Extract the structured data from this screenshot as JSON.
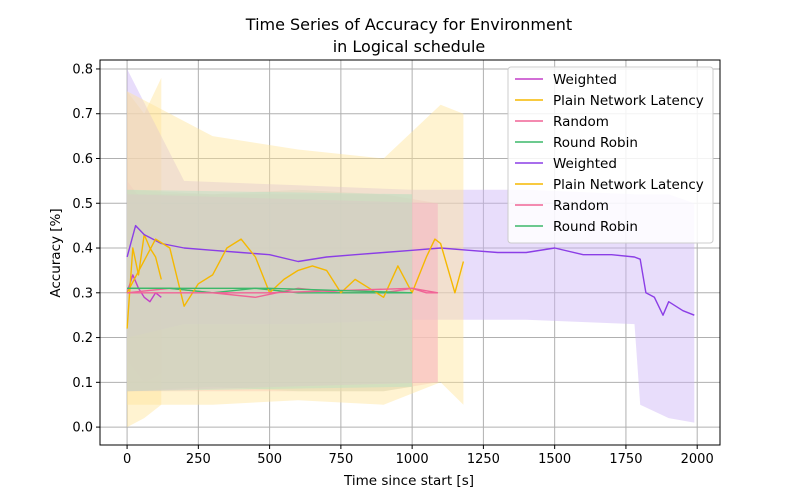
{
  "chart_data": {
    "type": "line",
    "title_line1": "Time Series of Accuracy for Environment",
    "title_line2": "in Logical schedule",
    "xlabel": "Time since start [s]",
    "ylabel": "Accuracy [%]",
    "xlim": [
      -95,
      2080
    ],
    "ylim": [
      -0.04,
      0.82
    ],
    "xticks": [
      0,
      250,
      500,
      750,
      1000,
      1250,
      1500,
      1750,
      2000
    ],
    "yticks": [
      0.0,
      0.1,
      0.2,
      0.3,
      0.4,
      0.5,
      0.6,
      0.7,
      0.8
    ],
    "grid": true,
    "legend_position": "top-right",
    "series": [
      {
        "name": "Weighted",
        "color": "#c33fc8",
        "values": [
          [
            0,
            0.3
          ],
          [
            20,
            0.34
          ],
          [
            40,
            0.31
          ],
          [
            60,
            0.29
          ],
          [
            80,
            0.28
          ],
          [
            100,
            0.3
          ],
          [
            120,
            0.29
          ]
        ],
        "band_low": [
          [
            0,
            0.15
          ],
          [
            60,
            0.1
          ],
          [
            120,
            0.12
          ]
        ],
        "band_high": [
          [
            0,
            0.55
          ],
          [
            60,
            0.5
          ],
          [
            120,
            0.52
          ]
        ],
        "band_color": "#e6a8f0"
      },
      {
        "name": "Plain Network Latency",
        "color": "#f5b800",
        "values": [
          [
            0,
            0.22
          ],
          [
            20,
            0.4
          ],
          [
            40,
            0.34
          ],
          [
            60,
            0.43
          ],
          [
            80,
            0.4
          ],
          [
            100,
            0.38
          ],
          [
            120,
            0.33
          ]
        ],
        "band_low": [
          [
            0,
            0.0
          ],
          [
            60,
            0.02
          ],
          [
            120,
            0.05
          ]
        ],
        "band_high": [
          [
            0,
            0.75
          ],
          [
            60,
            0.7
          ],
          [
            120,
            0.78
          ]
        ],
        "band_color": "#ffe59a"
      },
      {
        "name": "Random",
        "color": "#f06496",
        "values": [
          [
            0,
            0.3
          ],
          [
            150,
            0.31
          ],
          [
            300,
            0.3
          ],
          [
            450,
            0.29
          ],
          [
            600,
            0.31
          ],
          [
            750,
            0.3
          ],
          [
            900,
            0.3
          ],
          [
            1000,
            0.31
          ],
          [
            1050,
            0.3
          ],
          [
            1090,
            0.3
          ]
        ],
        "band_low": [
          [
            0,
            0.08
          ],
          [
            300,
            0.08
          ],
          [
            600,
            0.08
          ],
          [
            900,
            0.08
          ],
          [
            1090,
            0.1
          ]
        ],
        "band_high": [
          [
            0,
            0.52
          ],
          [
            300,
            0.52
          ],
          [
            600,
            0.52
          ],
          [
            900,
            0.52
          ],
          [
            1090,
            0.5
          ]
        ],
        "band_color": "#f7b6c8"
      },
      {
        "name": "Round Robin",
        "color": "#3cb86a",
        "values": [
          [
            0,
            0.31
          ],
          [
            150,
            0.31
          ],
          [
            300,
            0.3
          ],
          [
            450,
            0.31
          ],
          [
            600,
            0.3
          ],
          [
            750,
            0.3
          ],
          [
            900,
            0.3
          ],
          [
            1000,
            0.3
          ]
        ],
        "band_low": [
          [
            0,
            0.08
          ],
          [
            300,
            0.09
          ],
          [
            600,
            0.08
          ],
          [
            900,
            0.08
          ],
          [
            1000,
            0.09
          ]
        ],
        "band_high": [
          [
            0,
            0.53
          ],
          [
            300,
            0.52
          ],
          [
            600,
            0.53
          ],
          [
            900,
            0.52
          ],
          [
            1000,
            0.52
          ]
        ],
        "band_color": "#b6e0c4"
      },
      {
        "name": "Weighted",
        "color": "#8b3ee6",
        "values": [
          [
            0,
            0.38
          ],
          [
            30,
            0.45
          ],
          [
            60,
            0.43
          ],
          [
            120,
            0.41
          ],
          [
            200,
            0.4
          ],
          [
            300,
            0.395
          ],
          [
            400,
            0.39
          ],
          [
            500,
            0.385
          ],
          [
            600,
            0.37
          ],
          [
            700,
            0.38
          ],
          [
            800,
            0.385
          ],
          [
            900,
            0.39
          ],
          [
            1000,
            0.395
          ],
          [
            1100,
            0.4
          ],
          [
            1200,
            0.395
          ],
          [
            1300,
            0.39
          ],
          [
            1400,
            0.39
          ],
          [
            1500,
            0.4
          ],
          [
            1600,
            0.385
          ],
          [
            1700,
            0.385
          ],
          [
            1780,
            0.38
          ],
          [
            1800,
            0.375
          ],
          [
            1820,
            0.3
          ],
          [
            1850,
            0.29
          ],
          [
            1880,
            0.25
          ],
          [
            1900,
            0.28
          ],
          [
            1950,
            0.26
          ],
          [
            1990,
            0.25
          ]
        ],
        "band_low": [
          [
            0,
            0.2
          ],
          [
            200,
            0.23
          ],
          [
            600,
            0.23
          ],
          [
            1000,
            0.24
          ],
          [
            1400,
            0.24
          ],
          [
            1780,
            0.23
          ],
          [
            1800,
            0.05
          ],
          [
            1900,
            0.02
          ],
          [
            1990,
            0.01
          ]
        ],
        "band_high": [
          [
            0,
            0.8
          ],
          [
            200,
            0.55
          ],
          [
            600,
            0.54
          ],
          [
            1000,
            0.53
          ],
          [
            1400,
            0.53
          ],
          [
            1780,
            0.52
          ],
          [
            1800,
            0.52
          ],
          [
            1900,
            0.52
          ],
          [
            1990,
            0.5
          ]
        ],
        "band_color": "#cbb3f7"
      },
      {
        "name": "Plain Network Latency",
        "color": "#f5b800",
        "values": [
          [
            0,
            0.3
          ],
          [
            100,
            0.42
          ],
          [
            150,
            0.4
          ],
          [
            200,
            0.27
          ],
          [
            250,
            0.32
          ],
          [
            300,
            0.34
          ],
          [
            350,
            0.4
          ],
          [
            400,
            0.42
          ],
          [
            450,
            0.38
          ],
          [
            500,
            0.3
          ],
          [
            550,
            0.33
          ],
          [
            600,
            0.35
          ],
          [
            650,
            0.36
          ],
          [
            700,
            0.35
          ],
          [
            750,
            0.3
          ],
          [
            800,
            0.33
          ],
          [
            850,
            0.31
          ],
          [
            900,
            0.29
          ],
          [
            950,
            0.36
          ],
          [
            1000,
            0.3
          ],
          [
            1050,
            0.38
          ],
          [
            1080,
            0.42
          ],
          [
            1100,
            0.41
          ],
          [
            1150,
            0.3
          ],
          [
            1180,
            0.37
          ]
        ],
        "band_low": [
          [
            0,
            0.05
          ],
          [
            300,
            0.05
          ],
          [
            600,
            0.06
          ],
          [
            900,
            0.05
          ],
          [
            1100,
            0.1
          ],
          [
            1180,
            0.05
          ]
        ],
        "band_high": [
          [
            0,
            0.75
          ],
          [
            300,
            0.65
          ],
          [
            600,
            0.62
          ],
          [
            900,
            0.6
          ],
          [
            1100,
            0.72
          ],
          [
            1180,
            0.7
          ]
        ],
        "band_color": "#ffe59a"
      },
      {
        "name": "Random",
        "color": "#f06496",
        "values": [
          [
            0,
            0.3
          ],
          [
            500,
            0.3
          ],
          [
            1000,
            0.31
          ],
          [
            1090,
            0.3
          ]
        ],
        "band_low": [
          [
            0,
            0.08
          ],
          [
            1090,
            0.1
          ]
        ],
        "band_high": [
          [
            0,
            0.52
          ],
          [
            1090,
            0.5
          ]
        ],
        "band_color": "#f7b6c8"
      },
      {
        "name": "Round Robin",
        "color": "#3cb86a",
        "values": [
          [
            0,
            0.31
          ],
          [
            500,
            0.31
          ],
          [
            1000,
            0.3
          ]
        ],
        "band_low": [
          [
            0,
            0.08
          ],
          [
            1000,
            0.09
          ]
        ],
        "band_high": [
          [
            0,
            0.53
          ],
          [
            1000,
            0.52
          ]
        ],
        "band_color": "#b6e0c4"
      }
    ]
  }
}
